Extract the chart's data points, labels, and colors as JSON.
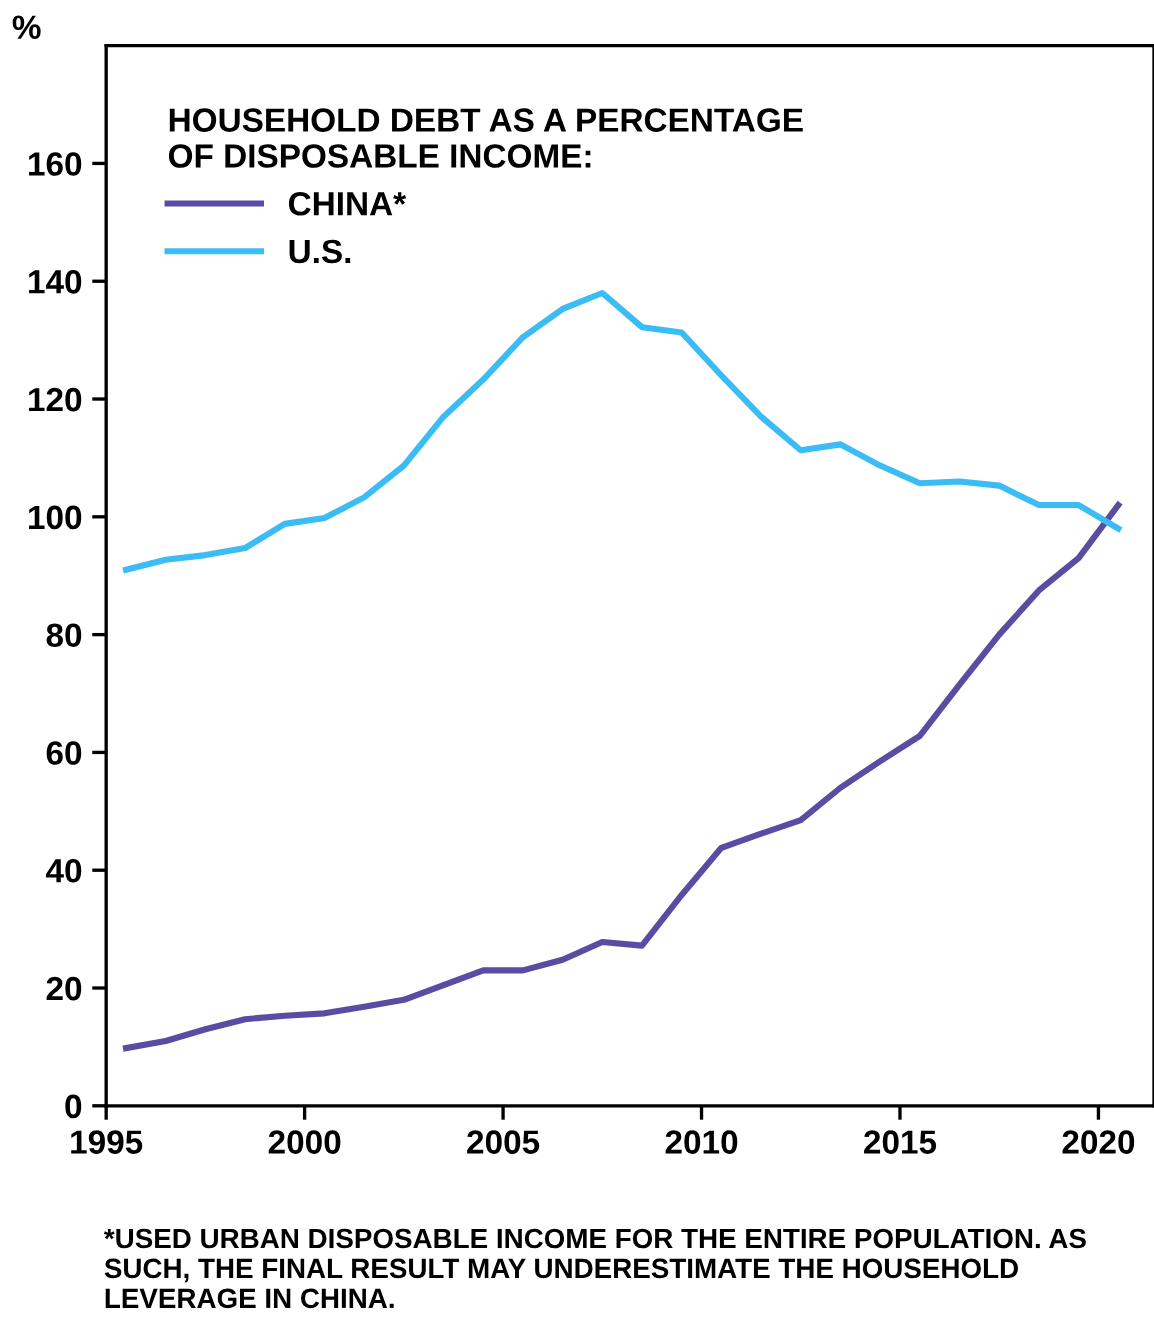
{
  "chart_data": {
    "type": "line",
    "legend_title": "HOUSEHOLD DEBT AS A PERCENTAGE\nOF DISPOSABLE INCOME:",
    "ylabel": "%",
    "x": [
      1995.5,
      1996.5,
      1997.5,
      1998.5,
      1999.5,
      2000.5,
      2001.5,
      2002.5,
      2003.5,
      2004.5,
      2005.5,
      2006.5,
      2007.5,
      2008.5,
      2009.5,
      2010.5,
      2011.5,
      2012.5,
      2013.5,
      2014.5,
      2015.5,
      2016.5,
      2017.5,
      2018.5,
      2019.5,
      2020.5
    ],
    "series": [
      {
        "name": "CHINA*",
        "color": "#5b4ba3",
        "values": [
          9.8,
          11,
          13,
          14.7,
          15.3,
          15.7,
          16.8,
          18,
          20.5,
          23,
          23,
          24.8,
          27.8,
          27.2,
          35.8,
          43.8,
          46.2,
          48.5,
          54,
          58.5,
          62.8,
          71.5,
          80,
          87.5,
          93,
          102
        ]
      },
      {
        "name": "U.S.",
        "color": "#3bbcf4",
        "values": [
          91,
          92.7,
          93.5,
          94.7,
          98.8,
          99.8,
          103.3,
          108.7,
          117,
          123.3,
          130.5,
          135.3,
          138,
          132.2,
          131.3,
          124,
          117,
          111.3,
          112.3,
          108.7,
          105.7,
          106,
          105.3,
          102,
          102,
          98
        ]
      }
    ],
    "xlim": [
      1995,
      2021.4
    ],
    "xticks": [
      1995,
      2000,
      2005,
      2010,
      2015,
      2020
    ],
    "ylim": [
      0,
      180
    ],
    "yticks": [
      0,
      20,
      40,
      60,
      80,
      100,
      120,
      140,
      160
    ],
    "grid": false,
    "legend": "top left",
    "marker": "none",
    "line_style": "solid",
    "annotations": [
      "*USED URBAN DISPOSABLE INCOME FOR THE ENTIRE POPULATION. AS SUCH, THE FINAL RESULT MAY UNDERESTIMATE THE HOUSEHOLD LEVERAGE IN CHINA."
    ]
  }
}
